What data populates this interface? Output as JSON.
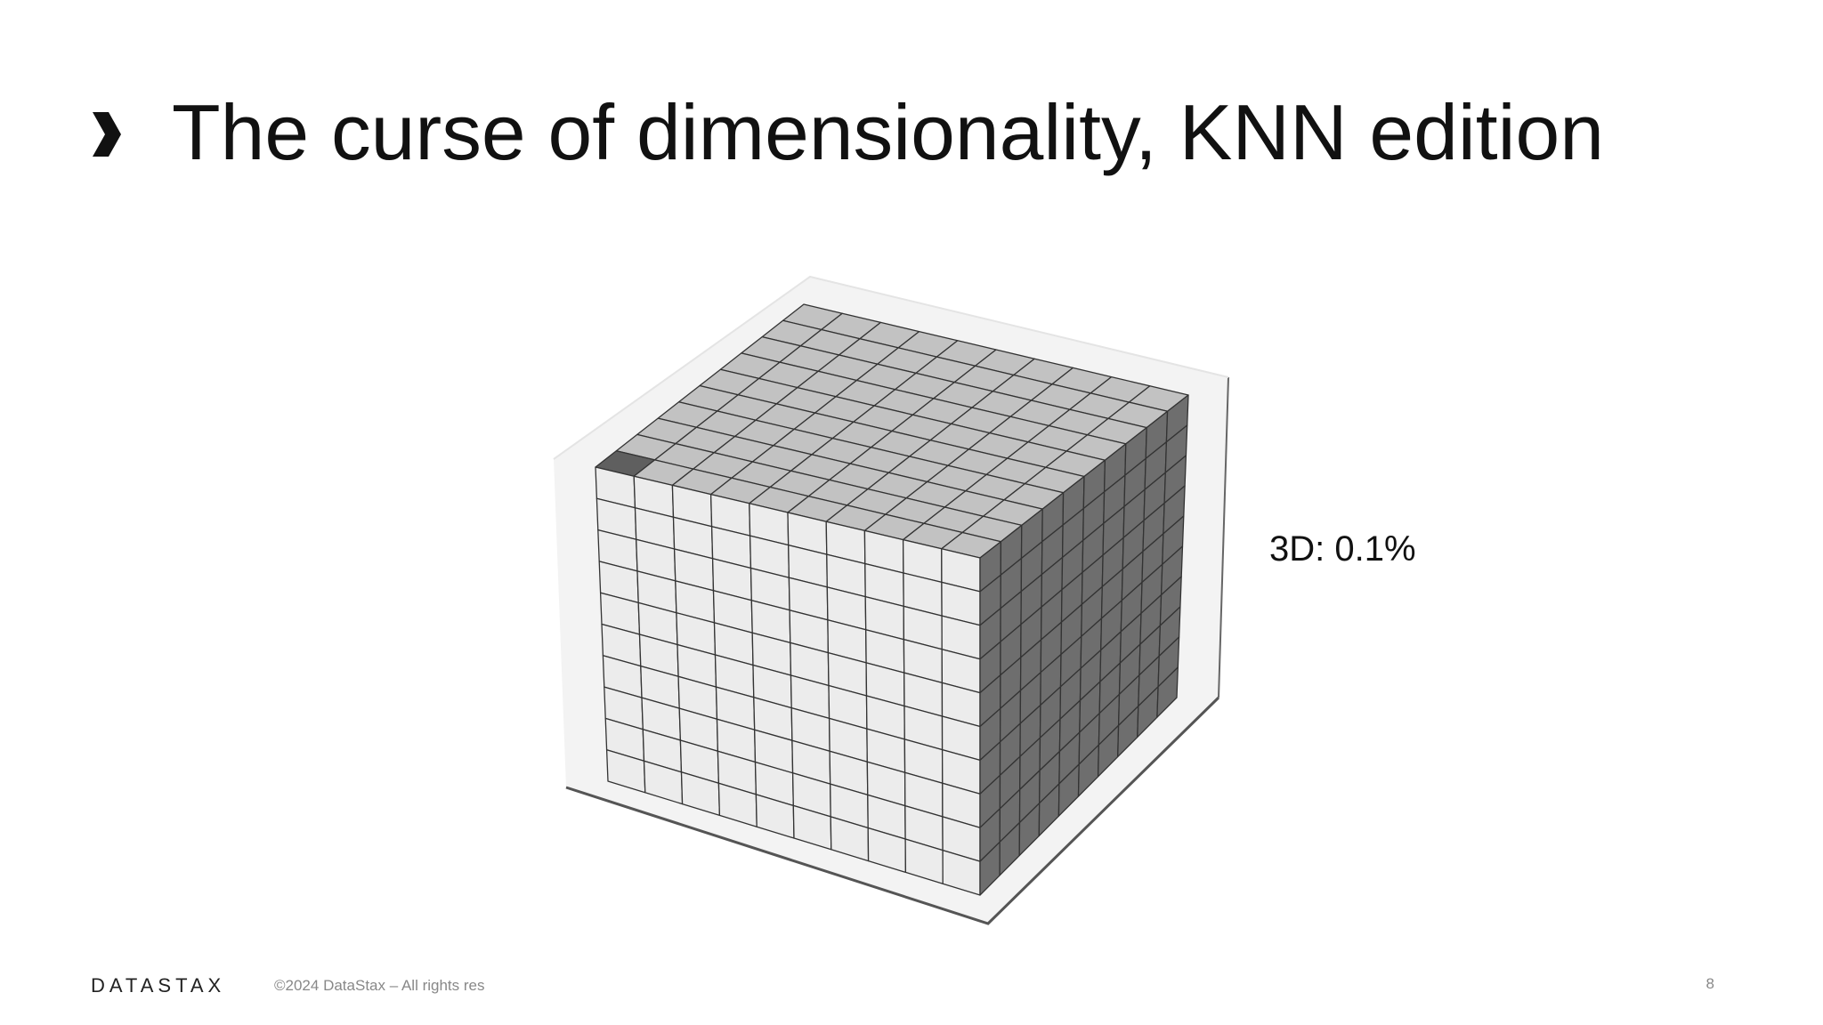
{
  "header": {
    "title": "The curse of dimensionality, KNN edition"
  },
  "figure": {
    "annotation": "3D: 0.1%"
  },
  "footer": {
    "logo": "DATASTAX",
    "copyright": "©2024 DataStax – All rights res",
    "page_number": "8"
  }
}
